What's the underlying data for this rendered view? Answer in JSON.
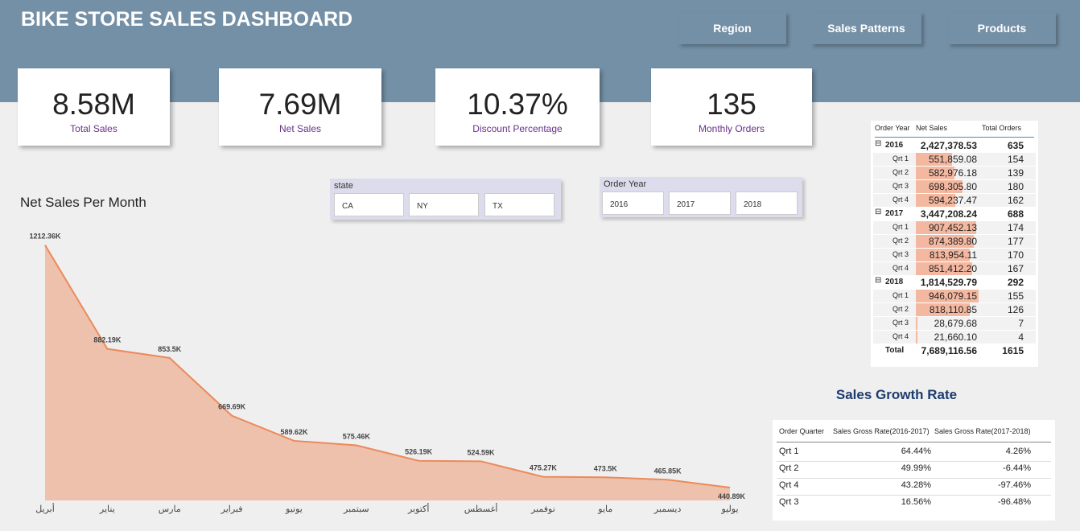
{
  "header": {
    "title": "BIKE STORE SALES DASHBOARD",
    "nav": [
      "Region",
      "Sales Patterns",
      "Products"
    ]
  },
  "kpis": [
    {
      "value": "8.58M",
      "label": "Total Sales"
    },
    {
      "value": "7.69M",
      "label": "Net Sales"
    },
    {
      "value": "10.37%",
      "label": "Discount Percentage"
    },
    {
      "value": "135",
      "label": "Monthly Orders"
    }
  ],
  "slicers": [
    {
      "title": "state",
      "options": [
        "CA",
        "NY",
        "TX"
      ]
    },
    {
      "title": "Order Year",
      "options": [
        "2016",
        "2017",
        "2018"
      ]
    }
  ],
  "chart_data": {
    "type": "area",
    "title": "Net Sales Per Month",
    "categories": [
      "أبريل",
      "يناير",
      "مارس",
      "فبراير",
      "يونيو",
      "سبتمبر",
      "أكتوبر",
      "أغسطس",
      "نوفمبر",
      "مايو",
      "ديسمبر",
      "يوليو"
    ],
    "values": [
      1212.36,
      882.19,
      853.5,
      669.69,
      589.62,
      575.46,
      526.19,
      524.59,
      475.27,
      473.5,
      465.85,
      440.89
    ],
    "value_labels": [
      "1212.36K",
      "882.19K",
      "853.5K",
      "669.69K",
      "589.62K",
      "575.46K",
      "526.19K",
      "524.59K",
      "475.27K",
      "473.5K",
      "465.85K",
      "440.89K"
    ],
    "color": "#ec8a5a",
    "ylim": [
      400,
      1250
    ]
  },
  "matrix": {
    "columns": [
      "Order Year",
      "Net Sales",
      "Total Orders"
    ],
    "rows": [
      {
        "label": "2016",
        "net_sales": "2,427,378.53",
        "orders": 635,
        "children": [
          {
            "label": "Qrt 1",
            "net_sales": "551,859.08",
            "orders": 154
          },
          {
            "label": "Qrt 2",
            "net_sales": "582,976.18",
            "orders": 139
          },
          {
            "label": "Qrt 3",
            "net_sales": "698,305.80",
            "orders": 180
          },
          {
            "label": "Qrt 4",
            "net_sales": "594,237.47",
            "orders": 162
          }
        ]
      },
      {
        "label": "2017",
        "net_sales": "3,447,208.24",
        "orders": 688,
        "children": [
          {
            "label": "Qrt 1",
            "net_sales": "907,452.13",
            "orders": 174
          },
          {
            "label": "Qrt 2",
            "net_sales": "874,389.80",
            "orders": 177
          },
          {
            "label": "Qrt 3",
            "net_sales": "813,954.11",
            "orders": 170
          },
          {
            "label": "Qrt 4",
            "net_sales": "851,412.20",
            "orders": 167
          }
        ]
      },
      {
        "label": "2018",
        "net_sales": "1,814,529.79",
        "orders": 292,
        "children": [
          {
            "label": "Qrt 1",
            "net_sales": "946,079.15",
            "orders": 155
          },
          {
            "label": "Qrt 2",
            "net_sales": "818,110.85",
            "orders": 126
          },
          {
            "label": "Qrt 3",
            "net_sales": "28,679.68",
            "orders": 7
          },
          {
            "label": "Qrt 4",
            "net_sales": "21,660.10",
            "orders": 4
          }
        ]
      }
    ],
    "total": {
      "label": "Total",
      "net_sales": "7,689,116.56",
      "orders": 1615
    }
  },
  "growth": {
    "title": "Sales Growth Rate",
    "columns": [
      "Order Quarter",
      "Sales Gross Rate(2016-2017)",
      "Sales Gross Rate(2017-2018)"
    ],
    "rows": [
      [
        "Qrt 1",
        "64.44%",
        "4.26%"
      ],
      [
        "Qrt 2",
        "49.99%",
        "-6.44%"
      ],
      [
        "Qrt 4",
        "43.28%",
        "-97.46%"
      ],
      [
        "Qrt 3",
        "16.56%",
        "-96.48%"
      ]
    ]
  }
}
